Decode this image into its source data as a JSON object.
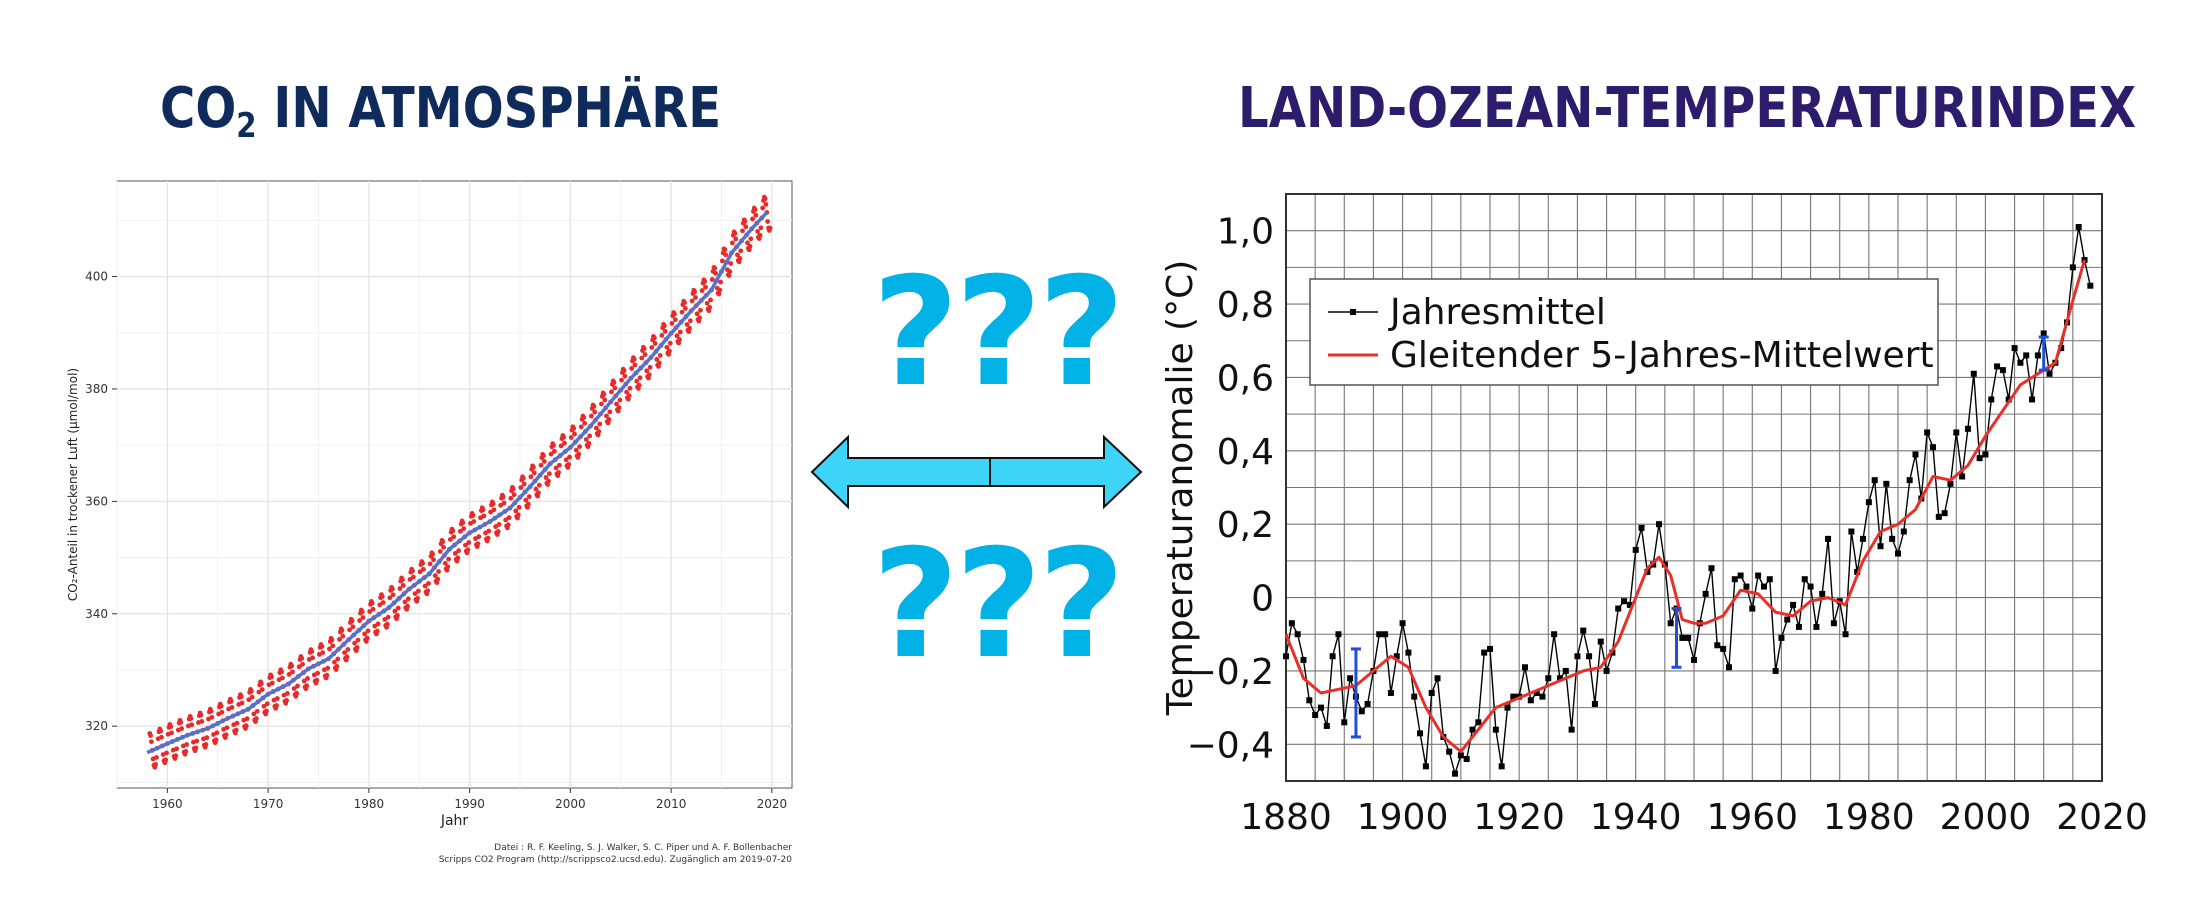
{
  "titles": {
    "left_main": "CO",
    "left_sub": "2",
    "left_rest": " IN ATMOSPHÄRE",
    "right": "LAND-OZEAN-TEMPERATURINDEX"
  },
  "center": {
    "question_top": "???",
    "question_bottom": "???",
    "arrow_color": "#3dd4f7"
  },
  "chart_data": [
    {
      "type": "line",
      "xlabel": "Jahr",
      "ylabel": "CO₂-Anteil in trockener Luft (µmol/mol)",
      "xlim": [
        1955,
        2022
      ],
      "ylim": [
        309,
        417
      ],
      "xticks": [
        "1960",
        "1970",
        "1980",
        "1990",
        "2000",
        "2010",
        "2020"
      ],
      "yticks": [
        "320",
        "340",
        "360",
        "380",
        "400"
      ],
      "grid": true,
      "source_line1": "Datei : R. F. Keeling, S. J. Walker, S. C. Piper und A. F. Bollenbacher",
      "source_line2": "Scripps CO2 Program (http://scrippsco2.ucsd.edu). Zugänglich am 2019-07-20",
      "series": [
        {
          "style": "monthly points",
          "color": "#e82a2a",
          "seasonal_amplitude": 3.2,
          "x": [
            1958,
            1960,
            1962,
            1964,
            1966,
            1968,
            1970,
            1972,
            1974,
            1976,
            1978,
            1980,
            1982,
            1984,
            1986,
            1988,
            1990,
            1992,
            1994,
            1996,
            1998,
            2000,
            2002,
            2004,
            2006,
            2008,
            2010,
            2012,
            2014,
            2016,
            2018,
            2019.5
          ],
          "y": [
            315.3,
            316.9,
            318.4,
            319.6,
            321.4,
            323.0,
            325.7,
            327.5,
            330.2,
            332.0,
            335.4,
            338.7,
            341.1,
            344.4,
            347.1,
            351.5,
            354.4,
            356.4,
            358.8,
            362.6,
            366.7,
            369.6,
            373.4,
            377.7,
            381.9,
            385.6,
            389.9,
            393.9,
            397.6,
            404.2,
            408.5,
            411.4
          ]
        },
        {
          "style": "trend line",
          "color": "#4f74d6",
          "x": [
            1958,
            1960,
            1962,
            1964,
            1966,
            1968,
            1970,
            1972,
            1974,
            1976,
            1978,
            1980,
            1982,
            1984,
            1986,
            1988,
            1990,
            1992,
            1994,
            1996,
            1998,
            2000,
            2002,
            2004,
            2006,
            2008,
            2010,
            2012,
            2014,
            2016,
            2018,
            2019.5
          ],
          "y": [
            315.3,
            316.9,
            318.4,
            319.6,
            321.4,
            323.0,
            325.7,
            327.5,
            330.2,
            332.0,
            335.4,
            338.7,
            341.1,
            344.4,
            347.1,
            351.5,
            354.4,
            356.4,
            358.8,
            362.6,
            366.7,
            369.6,
            373.4,
            377.7,
            381.9,
            385.6,
            389.9,
            393.9,
            397.6,
            404.2,
            408.5,
            411.4
          ]
        }
      ]
    },
    {
      "type": "line",
      "xlabel": "",
      "ylabel": "Temperaturanomalie (°C)",
      "xlim": [
        1880,
        2020
      ],
      "ylim": [
        -0.5,
        1.1
      ],
      "xticks": [
        "1880",
        "1900",
        "1920",
        "1940",
        "1960",
        "1980",
        "2000",
        "2020"
      ],
      "yticks": [
        "−0,4",
        "−0,2",
        "0",
        "0,2",
        "0,4",
        "0,6",
        "0,8",
        "1,0"
      ],
      "ytick_values": [
        -0.4,
        -0.2,
        0,
        0.2,
        0.4,
        0.6,
        0.8,
        1.0
      ],
      "grid": true,
      "legend_position": "top-left",
      "series": [
        {
          "name": "Jahresmittel",
          "color": "#000000",
          "x": [
            1880,
            1881,
            1882,
            1883,
            1884,
            1885,
            1886,
            1887,
            1888,
            1889,
            1890,
            1891,
            1892,
            1893,
            1894,
            1895,
            1896,
            1897,
            1898,
            1899,
            1900,
            1901,
            1902,
            1903,
            1904,
            1905,
            1906,
            1907,
            1908,
            1909,
            1910,
            1911,
            1912,
            1913,
            1914,
            1915,
            1916,
            1917,
            1918,
            1919,
            1920,
            1921,
            1922,
            1923,
            1924,
            1925,
            1926,
            1927,
            1928,
            1929,
            1930,
            1931,
            1932,
            1933,
            1934,
            1935,
            1936,
            1937,
            1938,
            1939,
            1940,
            1941,
            1942,
            1943,
            1944,
            1945,
            1946,
            1947,
            1948,
            1949,
            1950,
            1951,
            1952,
            1953,
            1954,
            1955,
            1956,
            1957,
            1958,
            1959,
            1960,
            1961,
            1962,
            1963,
            1964,
            1965,
            1966,
            1967,
            1968,
            1969,
            1970,
            1971,
            1972,
            1973,
            1974,
            1975,
            1976,
            1977,
            1978,
            1979,
            1980,
            1981,
            1982,
            1983,
            1984,
            1985,
            1986,
            1987,
            1988,
            1989,
            1990,
            1991,
            1992,
            1993,
            1994,
            1995,
            1996,
            1997,
            1998,
            1999,
            2000,
            2001,
            2002,
            2003,
            2004,
            2005,
            2006,
            2007,
            2008,
            2009,
            2010,
            2011,
            2012,
            2013,
            2014,
            2015,
            2016,
            2017,
            2018
          ],
          "y": [
            -0.16,
            -0.07,
            -0.1,
            -0.17,
            -0.28,
            -0.32,
            -0.3,
            -0.35,
            -0.16,
            -0.1,
            -0.34,
            -0.22,
            -0.27,
            -0.31,
            -0.29,
            -0.2,
            -0.1,
            -0.1,
            -0.26,
            -0.16,
            -0.07,
            -0.15,
            -0.27,
            -0.37,
            -0.46,
            -0.26,
            -0.22,
            -0.38,
            -0.42,
            -0.48,
            -0.43,
            -0.44,
            -0.36,
            -0.34,
            -0.15,
            -0.14,
            -0.36,
            -0.46,
            -0.3,
            -0.27,
            -0.27,
            -0.19,
            -0.28,
            -0.26,
            -0.27,
            -0.22,
            -0.1,
            -0.22,
            -0.2,
            -0.36,
            -0.16,
            -0.09,
            -0.16,
            -0.29,
            -0.12,
            -0.2,
            -0.15,
            -0.03,
            -0.01,
            -0.02,
            0.13,
            0.19,
            0.07,
            0.09,
            0.2,
            0.09,
            -0.07,
            -0.03,
            -0.11,
            -0.11,
            -0.17,
            -0.07,
            0.01,
            0.08,
            -0.13,
            -0.14,
            -0.19,
            0.05,
            0.06,
            0.03,
            -0.03,
            0.06,
            0.03,
            0.05,
            -0.2,
            -0.11,
            -0.06,
            -0.02,
            -0.08,
            0.05,
            0.03,
            -0.08,
            0.01,
            0.16,
            -0.07,
            -0.01,
            -0.1,
            0.18,
            0.07,
            0.16,
            0.26,
            0.32,
            0.14,
            0.31,
            0.16,
            0.12,
            0.18,
            0.32,
            0.39,
            0.27,
            0.45,
            0.41,
            0.22,
            0.23,
            0.31,
            0.45,
            0.33,
            0.46,
            0.61,
            0.38,
            0.39,
            0.54,
            0.63,
            0.62,
            0.54,
            0.68,
            0.64,
            0.66,
            0.54,
            0.66,
            0.72,
            0.61,
            0.64,
            0.68,
            0.75,
            0.9,
            1.01,
            0.92,
            0.85
          ]
        },
        {
          "name": "Gleitender 5-Jahres-Mittelwert",
          "color": "#e8302a",
          "x": [
            1880,
            1883,
            1886,
            1889,
            1892,
            1895,
            1898,
            1901,
            1904,
            1907,
            1910,
            1913,
            1916,
            1919,
            1922,
            1925,
            1928,
            1931,
            1934,
            1937,
            1940,
            1942,
            1944,
            1946,
            1948,
            1950,
            1952,
            1955,
            1958,
            1961,
            1964,
            1967,
            1970,
            1973,
            1976,
            1979,
            1982,
            1985,
            1988,
            1991,
            1994,
            1997,
            2000,
            2003,
            2006,
            2009,
            2012,
            2015,
            2017
          ],
          "y": [
            -0.1,
            -0.22,
            -0.26,
            -0.25,
            -0.24,
            -0.2,
            -0.16,
            -0.19,
            -0.3,
            -0.38,
            -0.42,
            -0.36,
            -0.3,
            -0.28,
            -0.26,
            -0.24,
            -0.22,
            -0.2,
            -0.19,
            -0.12,
            0.0,
            0.08,
            0.11,
            0.06,
            -0.06,
            -0.07,
            -0.07,
            -0.05,
            0.02,
            0.01,
            -0.04,
            -0.05,
            -0.01,
            0.0,
            -0.02,
            0.1,
            0.18,
            0.2,
            0.24,
            0.33,
            0.32,
            0.36,
            0.44,
            0.51,
            0.58,
            0.61,
            0.64,
            0.81,
            0.92
          ]
        }
      ],
      "error_bars": [
        {
          "x": 1892,
          "low": -0.38,
          "high": -0.14
        },
        {
          "x": 1947,
          "low": -0.19,
          "high": -0.03
        },
        {
          "x": 2010,
          "low": 0.62,
          "high": 0.71
        }
      ],
      "error_bar_color": "#1f4fd6"
    }
  ]
}
